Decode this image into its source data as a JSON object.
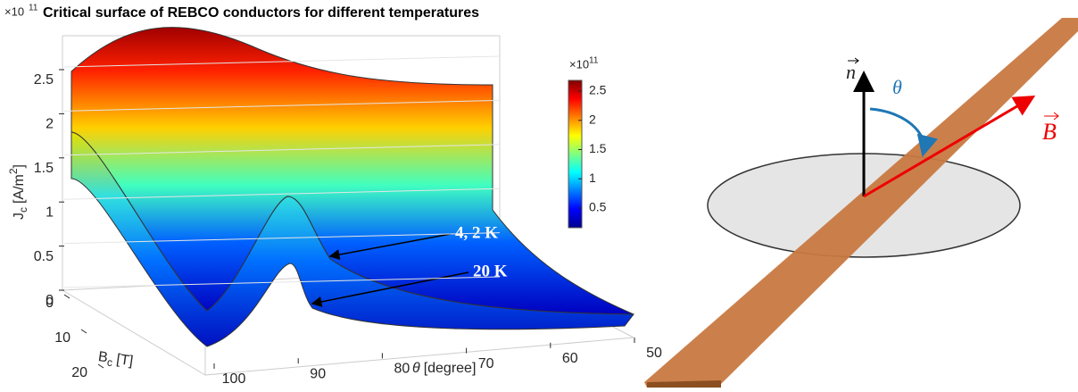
{
  "surface_plot": {
    "scale_label": {
      "base": "×10",
      "exponent": "11"
    },
    "title": "Critical surface of REBCO conductors for different temperatures",
    "z_label": {
      "symbol": "J",
      "subscript": "c",
      "unit": "[A/m",
      "unit_exponent": "2",
      "unit_close": "]"
    },
    "z_ticks": [
      0,
      0.5,
      1,
      1.5,
      2,
      2.5
    ],
    "b_label": {
      "symbol": "B",
      "subscript": "c",
      "unit": "[T]"
    },
    "b_ticks": [
      0,
      10,
      20
    ],
    "theta_label": {
      "symbol": "θ",
      "unit": "[degree]"
    },
    "theta_ticks": [
      100,
      90,
      80,
      70,
      60,
      50
    ],
    "colorbar": {
      "scale_label": {
        "base": "×10",
        "exponent": "11"
      },
      "ticks": [
        0.5,
        1,
        1.5,
        2,
        2.5
      ]
    },
    "annotations": [
      "4, 2 K",
      "20 K"
    ]
  },
  "diagram": {
    "normal_label": "n",
    "angle_label": "θ",
    "field_label": "B"
  }
}
